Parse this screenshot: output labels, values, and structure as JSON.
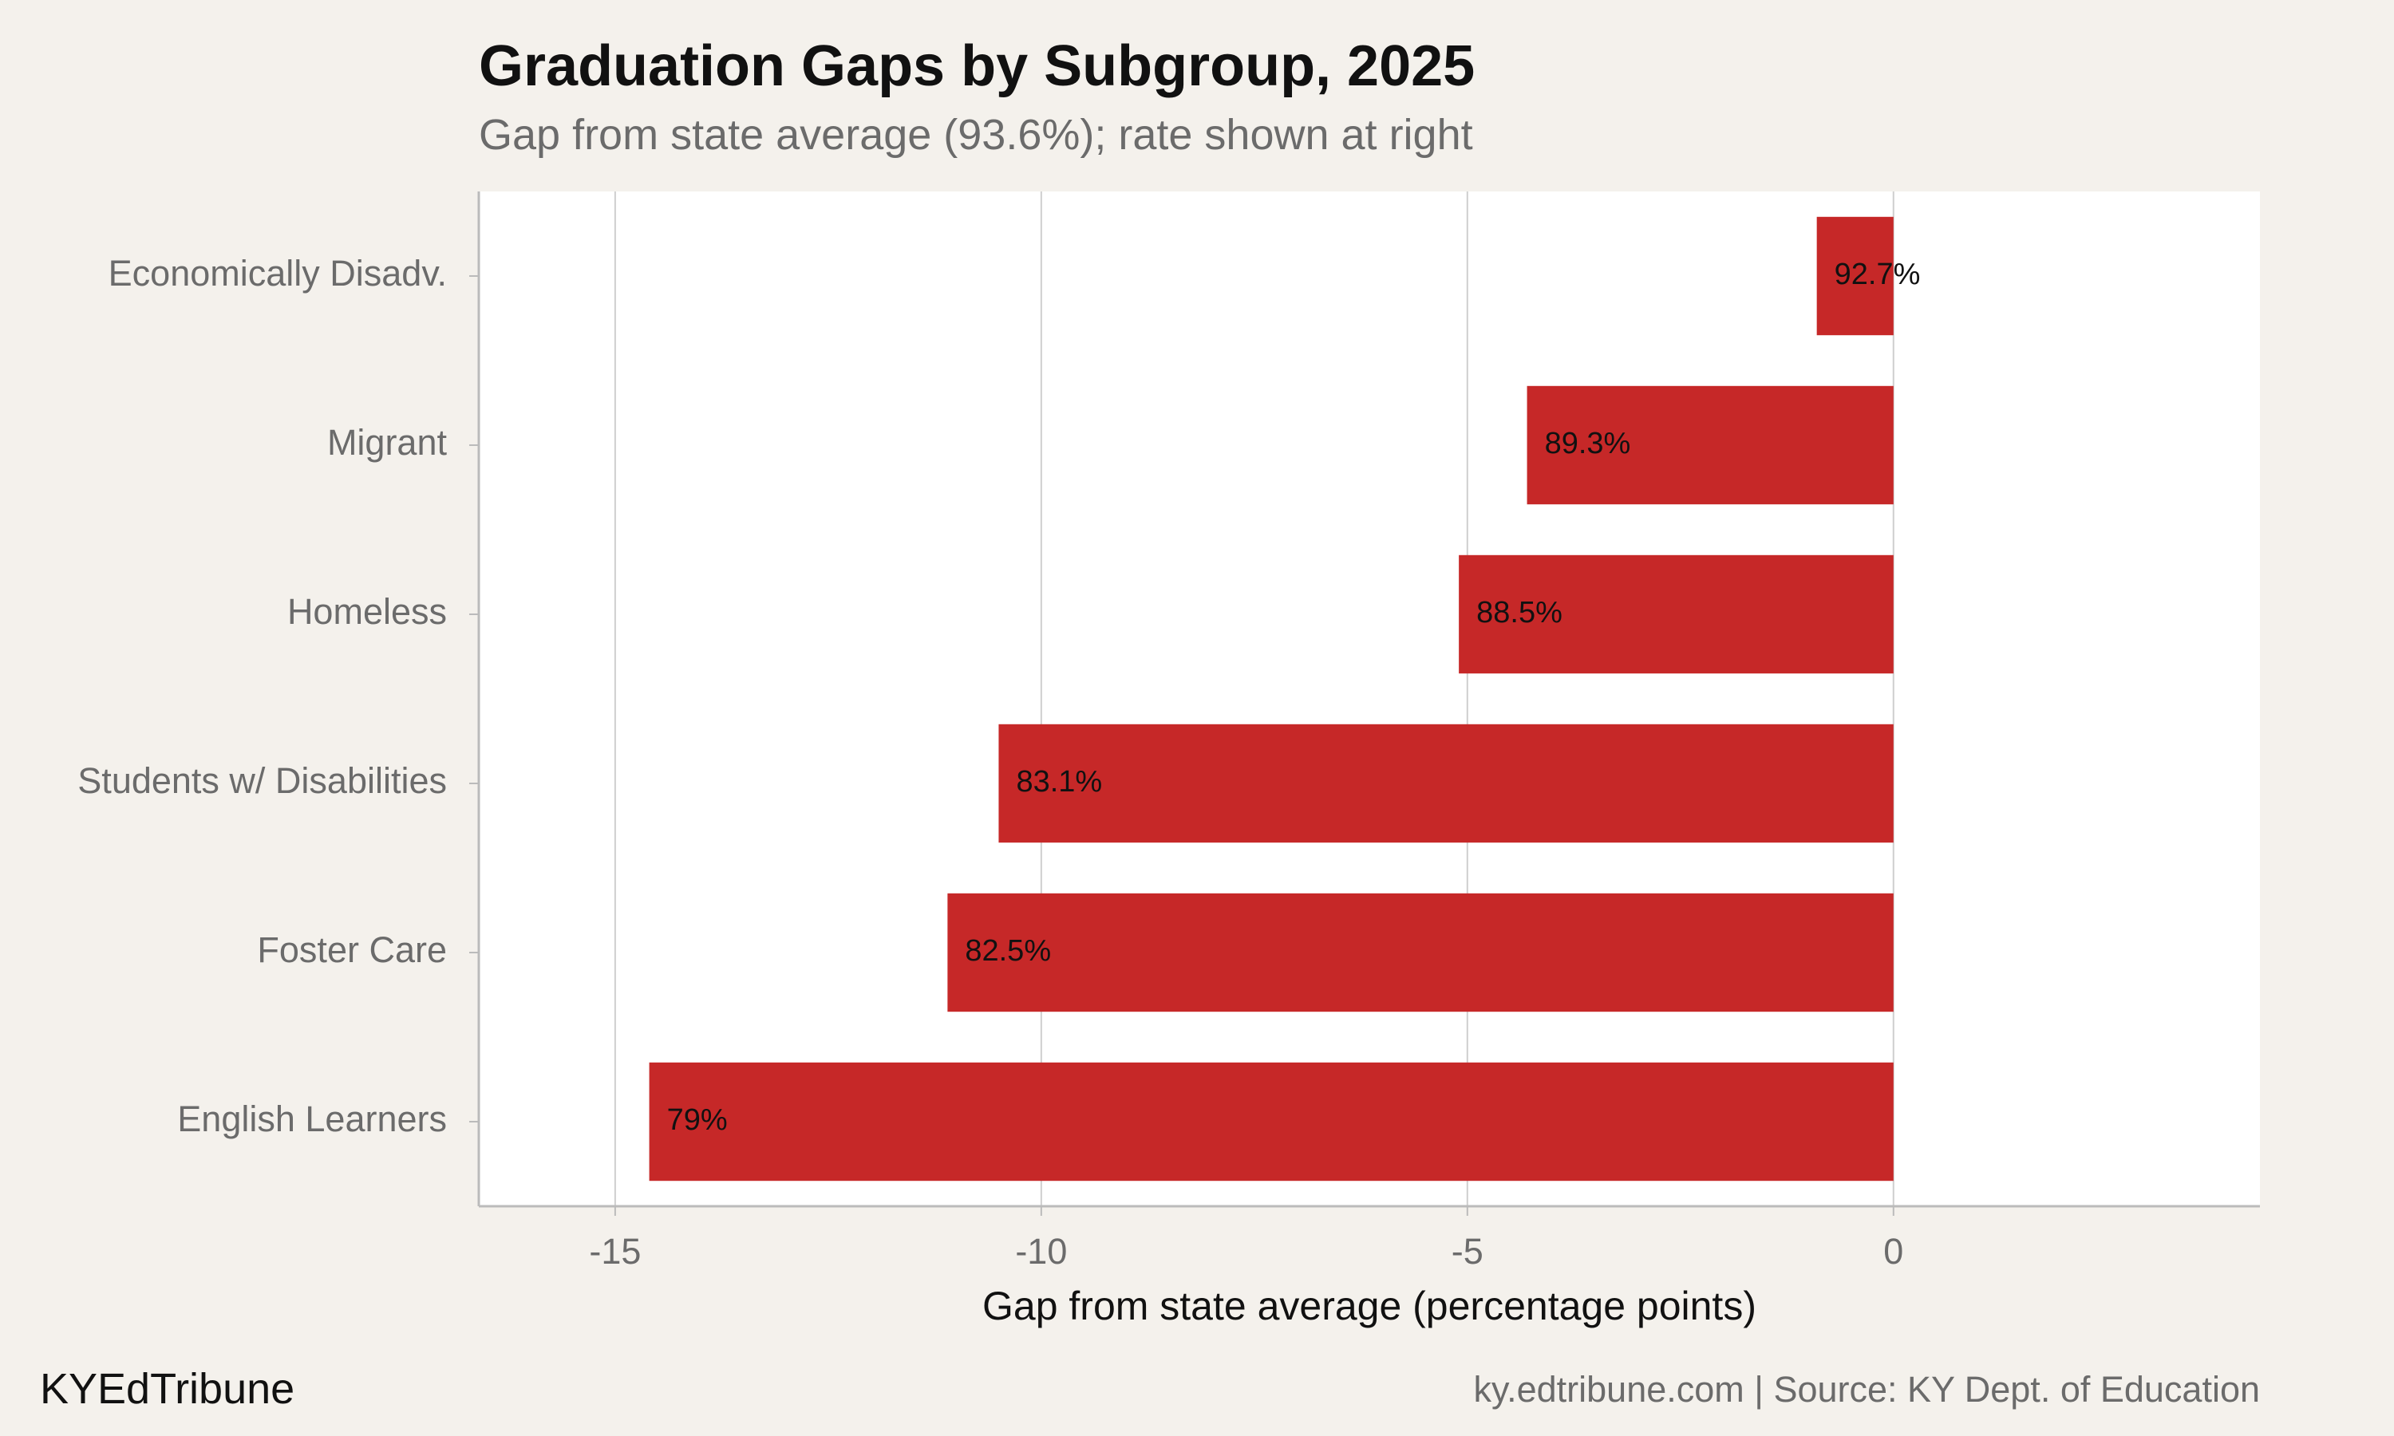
{
  "chart_data": {
    "type": "bar",
    "orientation": "horizontal",
    "title": "Graduation Gaps by Subgroup, 2025",
    "subtitle": "Gap from state average (93.6%); rate shown at right",
    "xlabel": "Gap from state average (percentage points)",
    "ylabel": "",
    "xlim": [
      -16.6,
      4.3
    ],
    "x_ticks": [
      -15,
      -10,
      -5,
      0
    ],
    "x_tick_labels": [
      "-15",
      "-10",
      "-5",
      "0"
    ],
    "grid": "vertical",
    "legend": "none",
    "categories": [
      "Economically Disadv.",
      "Migrant",
      "Homeless",
      "Students w/ Disabilities",
      "Foster Care",
      "English Learners"
    ],
    "series": [
      {
        "values": [
          -0.9,
          -4.3,
          -5.1,
          -10.5,
          -11.1,
          -14.6
        ],
        "rate_labels": [
          "92.7%",
          "89.3%",
          "88.5%",
          "83.1%",
          "82.5%",
          "79%"
        ]
      }
    ]
  },
  "footer": {
    "brand": "KYEdTribune",
    "source": "ky.edtribune.com | Source: KY Dept. of Education"
  },
  "colors": {
    "bar": "#c62828",
    "background": "#f4f1ec",
    "panel": "#ffffff",
    "grid": "#cfcfcf",
    "axis": "#bbbbbb",
    "tick_text": "#6b6b6b",
    "label_text": "#111111"
  }
}
